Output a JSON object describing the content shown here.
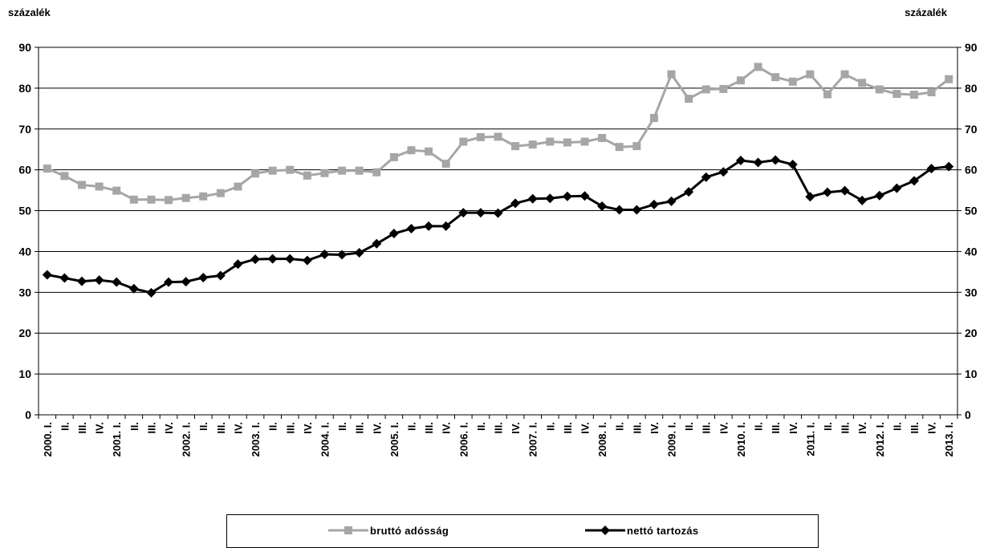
{
  "chart_data": {
    "type": "line",
    "y_unit_left": "százalék",
    "y_unit_right": "százalék",
    "ylim": [
      0,
      90
    ],
    "yticks": [
      0,
      10,
      20,
      30,
      40,
      50,
      60,
      70,
      80,
      90
    ],
    "grid": true,
    "legend_position": "bottom",
    "categories": [
      "2000. I.",
      "II.",
      "III.",
      "IV.",
      "2001. I.",
      "II.",
      "III.",
      "IV.",
      "2002. I.",
      "II.",
      "III.",
      "IV.",
      "2003. I.",
      "II.",
      "III.",
      "IV.",
      "2004. I.",
      "II.",
      "III.",
      "IV.",
      "2005. I.",
      "II.",
      "III.",
      "IV.",
      "2006. I.",
      "II.",
      "III.",
      "IV.",
      "2007. I.",
      "II.",
      "III.",
      "IV.",
      "2008. I.",
      "II.",
      "III.",
      "IV.",
      "2009. I.",
      "II.",
      "III.",
      "IV.",
      "2010. I.",
      "II.",
      "III.",
      "IV.",
      "2011. I.",
      "II.",
      "III.",
      "IV.",
      "2012. I.",
      "II.",
      "III.",
      "IV.",
      "2013. I."
    ],
    "series": [
      {
        "name": "bruttó adósság",
        "color": "#a6a6a6",
        "marker": "square",
        "values": [
          60.3,
          58.5,
          56.3,
          55.9,
          54.9,
          52.7,
          52.7,
          52.6,
          53.1,
          53.5,
          54.3,
          55.9,
          59.1,
          59.8,
          60.0,
          58.6,
          59.2,
          59.8,
          59.8,
          59.4,
          63.1,
          64.8,
          64.5,
          61.5,
          66.9,
          68.0,
          68.1,
          65.8,
          66.2,
          66.9,
          66.7,
          66.9,
          67.8,
          65.6,
          65.8,
          72.7,
          83.4,
          77.4,
          79.7,
          79.8,
          81.9,
          85.2,
          82.7,
          81.6,
          83.4,
          78.5,
          83.4,
          81.3,
          79.7,
          78.6,
          78.4,
          79.0,
          82.2
        ]
      },
      {
        "name": "nettó tartozás",
        "color": "#000000",
        "marker": "diamond",
        "values": [
          34.3,
          33.5,
          32.7,
          33.0,
          32.5,
          30.9,
          29.9,
          32.5,
          32.6,
          33.6,
          34.1,
          36.9,
          38.1,
          38.2,
          38.2,
          37.8,
          39.3,
          39.2,
          39.7,
          41.9,
          44.4,
          45.6,
          46.2,
          46.2,
          49.5,
          49.5,
          49.4,
          51.8,
          52.9,
          53.0,
          53.5,
          53.6,
          51.1,
          50.2,
          50.2,
          51.5,
          52.3,
          54.6,
          58.2,
          59.5,
          62.3,
          61.8,
          62.4,
          61.3,
          53.4,
          54.5,
          54.9,
          52.5,
          53.7,
          55.5,
          57.3,
          60.3,
          60.8
        ]
      }
    ]
  }
}
